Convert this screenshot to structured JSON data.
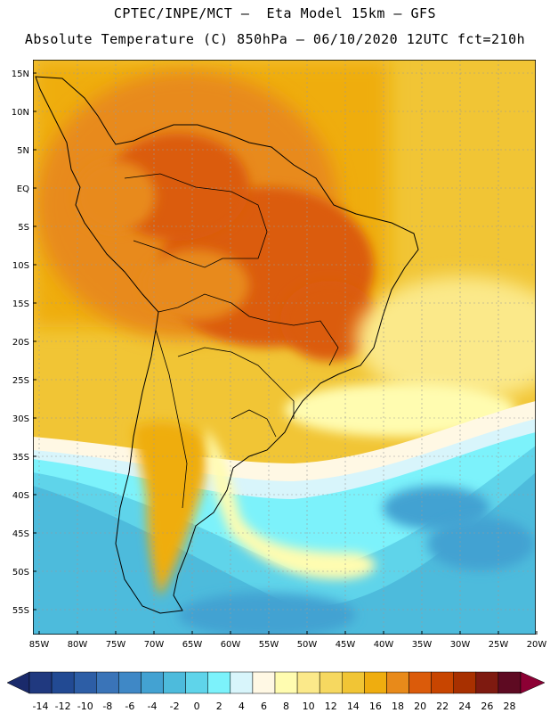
{
  "title_line1": "CPTEC/INPE/MCT –  Eta Model 15km – GFS",
  "title_line2": "Absolute Temperature (C) 850hPa – 06/10/2020 12UTC fct=210h",
  "map": {
    "lat_labels": [
      "15N",
      "10N",
      "5N",
      "EQ",
      "5S",
      "10S",
      "15S",
      "20S",
      "25S",
      "30S",
      "35S",
      "40S",
      "45S",
      "50S",
      "55S"
    ],
    "lon_labels": [
      "85W",
      "80W",
      "75W",
      "70W",
      "65W",
      "60W",
      "55W",
      "50W",
      "45W",
      "40W",
      "35W",
      "30W",
      "25W",
      "20W"
    ]
  },
  "colorbar": {
    "labels": [
      "-14",
      "-12",
      "-10",
      "-8",
      "-6",
      "-4",
      "-2",
      "0",
      "2",
      "4",
      "6",
      "8",
      "10",
      "12",
      "14",
      "16",
      "18",
      "20",
      "22",
      "24",
      "26",
      "28"
    ],
    "colors": [
      "#20397f",
      "#224a93",
      "#2d5ea6",
      "#3a74b8",
      "#3f88c6",
      "#43a2d2",
      "#4dbbdc",
      "#5fd4ea",
      "#7cf2fb",
      "#d8f5fb",
      "#fff8e4",
      "#fffcb0",
      "#fbe98a",
      "#f6d860",
      "#f1c535",
      "#efad0f",
      "#e88a1a",
      "#db5b0a",
      "#c84500",
      "#a83000",
      "#7e1a10",
      "#5e0a22"
    ],
    "left_arrow_color": "#1a2a6b",
    "right_arrow_color": "#8c0034"
  }
}
